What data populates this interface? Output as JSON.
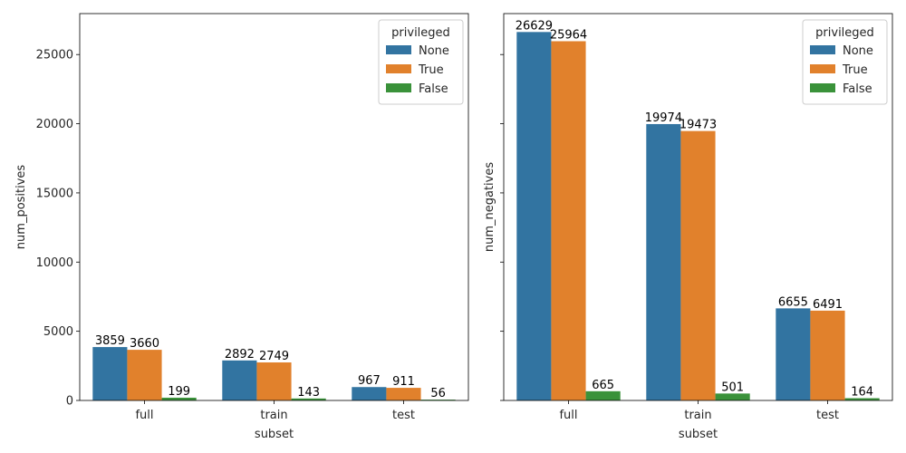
{
  "chart_data": [
    {
      "type": "bar",
      "xlabel": "subset",
      "ylabel": "num_positives",
      "categories": [
        "full",
        "train",
        "test"
      ],
      "series": [
        {
          "name": "None",
          "values": [
            3859,
            2892,
            967
          ]
        },
        {
          "name": "True",
          "values": [
            3660,
            2749,
            911
          ]
        },
        {
          "name": "False",
          "values": [
            199,
            143,
            56
          ]
        }
      ],
      "ylim": [
        0,
        27960
      ],
      "yticks": [
        0,
        5000,
        10000,
        15000,
        20000,
        25000
      ],
      "show_ytick_labels": true,
      "legend": {
        "title": "privileged",
        "placement": "top-right"
      },
      "grid": false
    },
    {
      "type": "bar",
      "xlabel": "subset",
      "ylabel": "num_negatives",
      "categories": [
        "full",
        "train",
        "test"
      ],
      "series": [
        {
          "name": "None",
          "values": [
            26629,
            19974,
            6655
          ]
        },
        {
          "name": "True",
          "values": [
            25964,
            19473,
            6491
          ]
        },
        {
          "name": "False",
          "values": [
            665,
            501,
            164
          ]
        }
      ],
      "ylim": [
        0,
        27960
      ],
      "yticks": [
        0,
        5000,
        10000,
        15000,
        20000,
        25000
      ],
      "show_ytick_labels": false,
      "legend": {
        "title": "privileged",
        "placement": "top-right"
      },
      "grid": false
    }
  ],
  "colors": {
    "None": "#3274a1",
    "True": "#e1812c",
    "False": "#3a923a"
  }
}
